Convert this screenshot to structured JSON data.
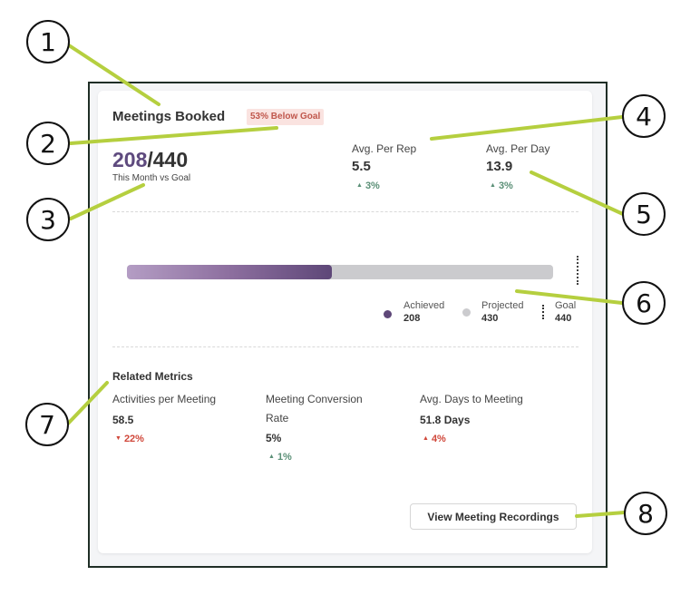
{
  "widget": {
    "title": "Meetings Booked",
    "badge": "53% Below Goal",
    "achieved": "208",
    "separator": "/",
    "goal": "440",
    "caption": "This Month vs Goal"
  },
  "stats": [
    {
      "label": "Avg. Per Rep",
      "value": "5.5",
      "delta": "3%",
      "direction": "up",
      "color": "#5a8f76"
    },
    {
      "label": "Avg. Per Day",
      "value": "13.9",
      "delta": "3%",
      "direction": "up",
      "color": "#5a8f76"
    }
  ],
  "progress": {
    "achieved_pct": 48,
    "achieved_color": "#5e4778",
    "projected_color": "#cbcbce",
    "legend": [
      {
        "label": "Achieved",
        "value": "208"
      },
      {
        "label": "Projected",
        "value": "430"
      },
      {
        "label": "Goal",
        "value": "440"
      }
    ]
  },
  "related": {
    "title": "Related Metrics",
    "metrics": [
      {
        "label": "Activities per Meeting",
        "value": "58.5",
        "delta": "22%",
        "direction": "down",
        "color": "#d0473a"
      },
      {
        "label_line1": "Meeting Conversion",
        "label_line2": "Rate",
        "value": "5%",
        "delta": "1%",
        "direction": "up",
        "color": "#5a8f76"
      },
      {
        "label": "Avg. Days to Meeting",
        "value": "51.8 Days",
        "delta": "4%",
        "direction": "up",
        "color": "#d0473a"
      }
    ]
  },
  "actions": {
    "view_recordings": "View Meeting Recordings"
  },
  "icons": {
    "up": "▲",
    "down": "▼"
  },
  "callouts": [
    "1",
    "2",
    "3",
    "4",
    "5",
    "6",
    "7",
    "8"
  ]
}
